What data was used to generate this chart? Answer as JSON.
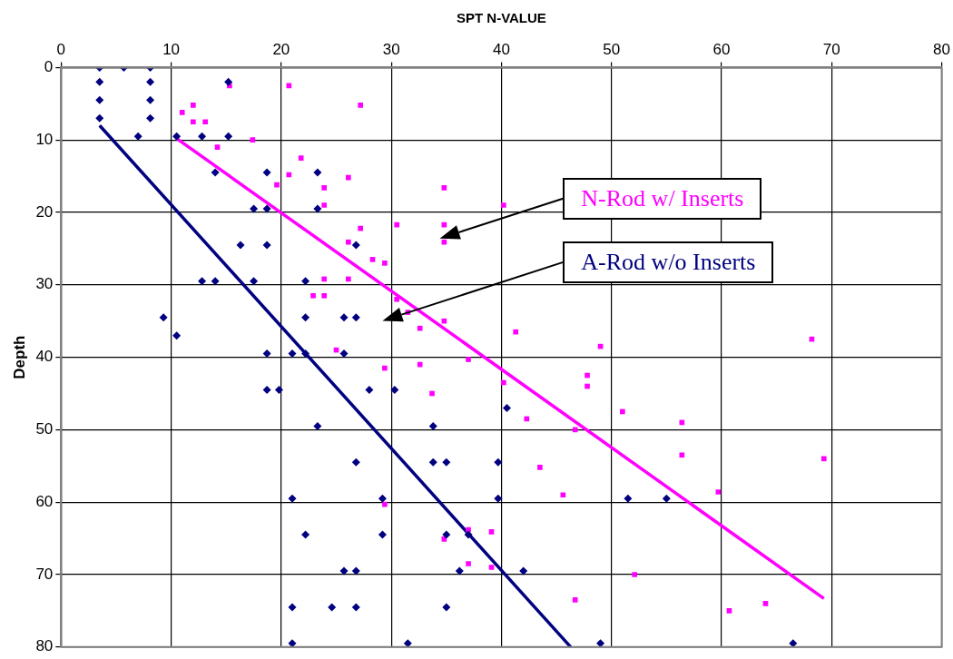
{
  "chart_data": {
    "type": "scatter",
    "xlabel": "SPT N-VALUE",
    "ylabel": "Depth",
    "xlim": [
      0,
      80
    ],
    "xticks": [
      0,
      10,
      20,
      30,
      40,
      50,
      60,
      70,
      80
    ],
    "ylim": [
      80,
      0
    ],
    "yticks": [
      0,
      10,
      20,
      30,
      40,
      50,
      60,
      70,
      80
    ],
    "grid": true,
    "legend": false,
    "series": [
      {
        "name": "A-Rod w/o Inserts",
        "marker": "diamond",
        "color": "#000080",
        "x": [
          3.5,
          5.7,
          8.1,
          3.5,
          8.1,
          3.5,
          8.1,
          3.5,
          8.1,
          7,
          10.5,
          12.8,
          15.2,
          15.2,
          14,
          18.7,
          23.3,
          17.5,
          18.7,
          23.3,
          16.3,
          18.7,
          26.8,
          12.8,
          14,
          17.5,
          22.2,
          9.3,
          22.2,
          25.7,
          26.8,
          10.5,
          18.7,
          21,
          22.2,
          25.7,
          18.7,
          19.8,
          28,
          30.3,
          40.5,
          23.3,
          33.8,
          26.8,
          33.8,
          35,
          39.7,
          21,
          29.2,
          39.7,
          51.5,
          55,
          22.2,
          29.2,
          35,
          37,
          25.7,
          26.8,
          36.2,
          42,
          21,
          24.6,
          26.8,
          35,
          21,
          31.5,
          49,
          66.5
        ],
        "values": [
          0,
          0,
          0,
          2,
          2,
          4.5,
          4.5,
          7,
          7,
          9.5,
          9.5,
          9.5,
          9.5,
          2,
          14.5,
          14.5,
          14.5,
          19.5,
          19.5,
          19.5,
          24.5,
          24.5,
          24.5,
          29.5,
          29.5,
          29.5,
          29.5,
          34.5,
          34.5,
          34.5,
          34.5,
          37,
          39.5,
          39.5,
          39.5,
          39.5,
          44.5,
          44.5,
          44.5,
          44.5,
          47,
          49.5,
          49.5,
          54.5,
          54.5,
          54.5,
          54.5,
          59.5,
          59.5,
          59.5,
          59.5,
          59.5,
          64.5,
          64.5,
          64.5,
          64.5,
          69.5,
          69.5,
          69.5,
          69.5,
          74.5,
          74.5,
          74.5,
          74.5,
          79.5,
          79.5,
          79.5,
          79.5
        ]
      },
      {
        "name": "N-Rod w/ Inserts",
        "marker": "square",
        "color": "#ff00ff",
        "x": [
          15.3,
          20.7,
          27.2,
          12,
          11,
          12,
          13.1,
          14.2,
          17.4,
          21.8,
          20.7,
          26.1,
          19.6,
          23.9,
          23.9,
          34.8,
          40.2,
          30.5,
          34.8,
          27.2,
          34.8,
          26.1,
          28.3,
          29.4,
          23.9,
          26.1,
          30.5,
          22.9,
          23.9,
          31.5,
          32.6,
          34.8,
          41.3,
          68.2,
          49,
          25,
          29.4,
          32.6,
          37,
          47.8,
          47.8,
          40.2,
          33.7,
          51,
          42.3,
          56.4,
          46.7,
          69.3,
          56.4,
          43.5,
          45.6,
          59.7,
          29.4,
          37,
          39.1,
          34.8,
          37,
          39.1,
          52.1,
          46.7,
          64,
          60.7
        ],
        "values": [
          2.5,
          2.5,
          5.2,
          5.2,
          6.2,
          7.5,
          7.5,
          11,
          10,
          12.5,
          14.8,
          15.2,
          16.2,
          16.6,
          19,
          16.6,
          19,
          21.7,
          21.7,
          22.2,
          24.1,
          24.1,
          26.5,
          27,
          29.2,
          29.2,
          32,
          31.5,
          31.5,
          33.8,
          36,
          35,
          36.5,
          37.5,
          38.5,
          39,
          41.5,
          41,
          40.3,
          42.5,
          44,
          43.5,
          45,
          47.5,
          48.5,
          49,
          50,
          54,
          53.5,
          55.2,
          59,
          58.6,
          60.3,
          63.8,
          64.1,
          65.1,
          68.5,
          69,
          70,
          73.5,
          74,
          75
        ]
      },
      {
        "type": "line",
        "marker": "none",
        "color": "#000080",
        "x": [
          3.5,
          46.3
        ],
        "values": [
          8,
          80
        ]
      },
      {
        "type": "line",
        "marker": "none",
        "color": "#ff00ff",
        "x": [
          10.5,
          69.3
        ],
        "values": [
          9.8,
          73.3
        ]
      }
    ]
  }
}
